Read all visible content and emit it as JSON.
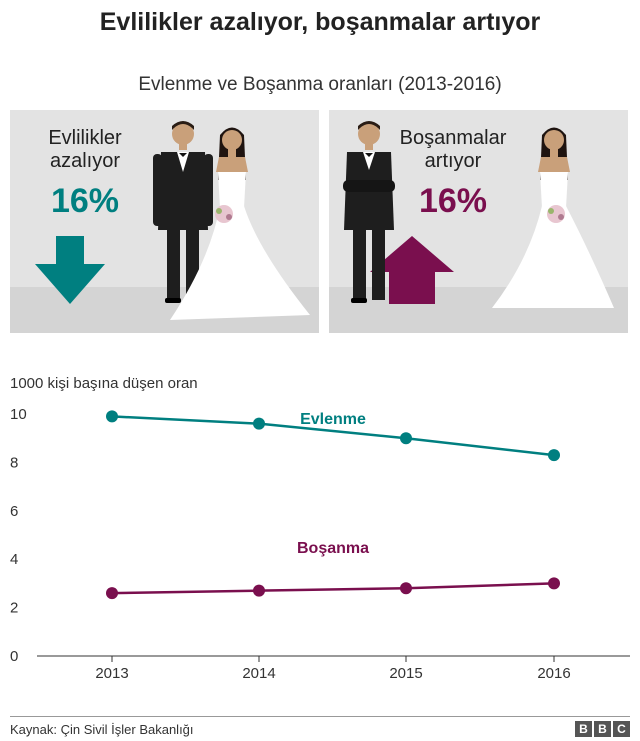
{
  "header": {
    "title": "Evlilikler azalıyor, boşanmalar artıyor",
    "subtitle": "Evlenme ve Boşanma oranları (2013-2016)"
  },
  "panels": {
    "marriage": {
      "line1": "Evlilikler",
      "line2": "azalıyor",
      "percent": "16%",
      "color": "#007f80",
      "arrow": "down"
    },
    "divorce": {
      "line1": "Boşanmalar",
      "line2": "artıyor",
      "percent": "16%",
      "color": "#7a0f4e",
      "arrow": "up"
    }
  },
  "chart_data": {
    "type": "line",
    "ylabel": "1000 kişi başına düşen oran",
    "x": [
      "2013",
      "2014",
      "2015",
      "2016"
    ],
    "ylim": [
      0,
      10
    ],
    "yticks": [
      0,
      2,
      4,
      6,
      8,
      10
    ],
    "grid": false,
    "series": [
      {
        "name": "Evlenme",
        "values": [
          9.9,
          9.6,
          9.0,
          8.3
        ],
        "color": "#007f80"
      },
      {
        "name": "Boşanma",
        "values": [
          2.6,
          2.7,
          2.8,
          3.0
        ],
        "color": "#7a0f4e"
      }
    ]
  },
  "footer": {
    "source": "Kaynak: Çin Sivil İşler Bakanlığı",
    "logo": [
      "B",
      "B",
      "C"
    ]
  }
}
